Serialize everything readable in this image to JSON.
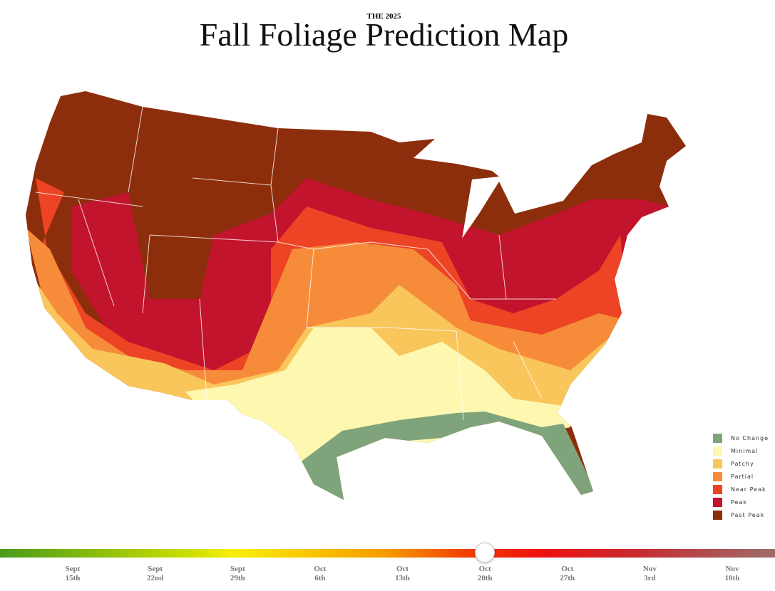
{
  "header": {
    "kicker": "THE 2025",
    "title": "Fall Foliage Prediction Map"
  },
  "legend": {
    "items": [
      {
        "label": "No Change",
        "color": "#7fa37a"
      },
      {
        "label": "Minimal",
        "color": "#fdf7b0"
      },
      {
        "label": "Patchy",
        "color": "#f9c65c"
      },
      {
        "label": "Partial",
        "color": "#f68c3a"
      },
      {
        "label": "Near Peak",
        "color": "#ec4424"
      },
      {
        "label": "Peak",
        "color": "#c2142c"
      },
      {
        "label": "Past Peak",
        "color": "#8c2e0c"
      }
    ]
  },
  "timeline": {
    "dates": [
      {
        "month": "Sept",
        "day": "15th"
      },
      {
        "month": "Sept",
        "day": "22nd"
      },
      {
        "month": "Sept",
        "day": "29th"
      },
      {
        "month": "Oct",
        "day": "6th"
      },
      {
        "month": "Oct",
        "day": "13th"
      },
      {
        "month": "Oct",
        "day": "20th"
      },
      {
        "month": "Oct",
        "day": "27th"
      },
      {
        "month": "Nov",
        "day": "3rd"
      },
      {
        "month": "Nov",
        "day": "10th"
      }
    ]
  }
}
